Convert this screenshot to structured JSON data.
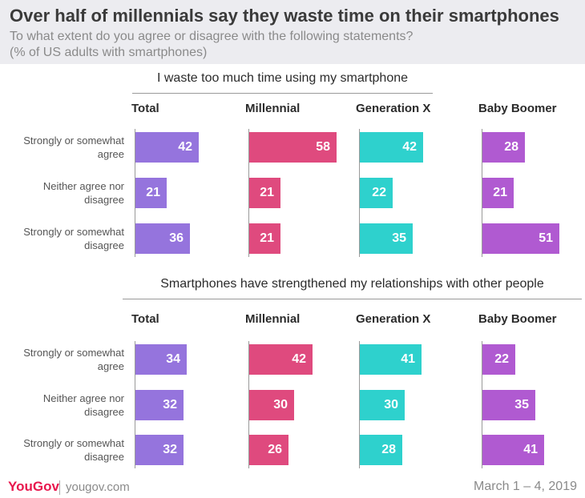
{
  "header": {
    "title": "Over half of millennials say they waste time on their smartphones",
    "subtitle_line1": "To what extent do you agree or disagree with the following statements?",
    "subtitle_line2": "(% of US adults with smartphones)"
  },
  "footer": {
    "logo": "YouGov",
    "url": "yougov.com",
    "date": "March 1 – 4, 2019"
  },
  "colors": {
    "Total": "#9574dd",
    "Millennial": "#df4a7e",
    "Generation X": "#2ed1cd",
    "Baby Boomer": "#b05ad1"
  },
  "chart_data": [
    {
      "type": "bar",
      "title": "I waste too much time using my smartphone",
      "categories": [
        "Strongly or somewhat agree",
        "Neither agree nor disagree",
        "Strongly or somewhat disagree"
      ],
      "series": [
        {
          "name": "Total",
          "values": [
            42,
            21,
            36
          ]
        },
        {
          "name": "Millennial",
          "values": [
            58,
            21,
            21
          ]
        },
        {
          "name": "Generation X",
          "values": [
            42,
            22,
            35
          ]
        },
        {
          "name": "Baby Boomer",
          "values": [
            28,
            21,
            51
          ]
        }
      ],
      "xlim": [
        0,
        60
      ],
      "orientation": "horizontal"
    },
    {
      "type": "bar",
      "title": "Smartphones have strengthened my relationships with other people",
      "categories": [
        "Strongly or somewhat agree",
        "Neither agree nor disagree",
        "Strongly or somewhat disagree"
      ],
      "series": [
        {
          "name": "Total",
          "values": [
            34,
            32,
            32
          ]
        },
        {
          "name": "Millennial",
          "values": [
            42,
            30,
            26
          ]
        },
        {
          "name": "Generation X",
          "values": [
            41,
            30,
            28
          ]
        },
        {
          "name": "Baby Boomer",
          "values": [
            22,
            35,
            41
          ]
        }
      ],
      "xlim": [
        0,
        60
      ],
      "orientation": "horizontal"
    }
  ]
}
